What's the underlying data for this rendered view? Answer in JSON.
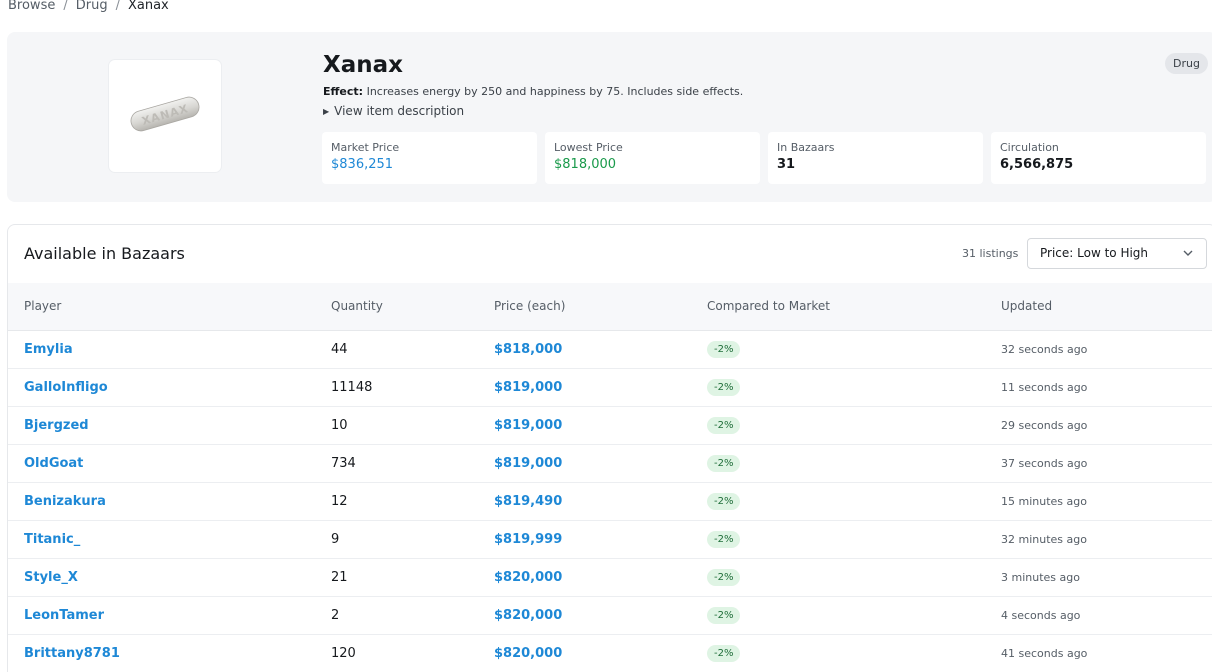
{
  "breadcrumb": [
    "Browse",
    "Drug",
    "Xanax"
  ],
  "item": {
    "title": "Xanax",
    "effect_label": "Effect:",
    "effect_text": "Increases energy by 250 and happiness by 75. Includes side effects.",
    "description_toggle": "View item description",
    "type_badge": "Drug",
    "pill_imprint": "XANAX"
  },
  "stats": {
    "market_price": {
      "label": "Market Price",
      "value": "$836,251"
    },
    "lowest_price": {
      "label": "Lowest Price",
      "value": "$818,000"
    },
    "in_bazaars": {
      "label": "In Bazaars",
      "value": "31"
    },
    "circulation": {
      "label": "Circulation",
      "value": "6,566,875"
    }
  },
  "listings": {
    "title": "Available in Bazaars",
    "count": "31 listings",
    "sort_value": "Price: Low to High",
    "columns": [
      "Player",
      "Quantity",
      "Price (each)",
      "Compared to Market",
      "Updated"
    ],
    "rows": [
      {
        "player": "Emylia",
        "quantity": "44",
        "price": "$818,000",
        "compare": "-2%",
        "updated": "32 seconds ago"
      },
      {
        "player": "GalloInfligo",
        "quantity": "11148",
        "price": "$819,000",
        "compare": "-2%",
        "updated": "11 seconds ago"
      },
      {
        "player": "Bjergzed",
        "quantity": "10",
        "price": "$819,000",
        "compare": "-2%",
        "updated": "29 seconds ago"
      },
      {
        "player": "OldGoat",
        "quantity": "734",
        "price": "$819,000",
        "compare": "-2%",
        "updated": "37 seconds ago"
      },
      {
        "player": "Benizakura",
        "quantity": "12",
        "price": "$819,490",
        "compare": "-2%",
        "updated": "15 minutes ago"
      },
      {
        "player": "Titanic_",
        "quantity": "9",
        "price": "$819,999",
        "compare": "-2%",
        "updated": "32 minutes ago"
      },
      {
        "player": "Style_X",
        "quantity": "21",
        "price": "$820,000",
        "compare": "-2%",
        "updated": "3 minutes ago"
      },
      {
        "player": "LeonTamer",
        "quantity": "2",
        "price": "$820,000",
        "compare": "-2%",
        "updated": "4 seconds ago"
      },
      {
        "player": "Brittany8781",
        "quantity": "120",
        "price": "$820,000",
        "compare": "-2%",
        "updated": "41 seconds ago"
      }
    ]
  },
  "icons": {
    "toggle": "triangle-right-icon",
    "sort": "chevron-down-icon",
    "item": "xanax-pill-icon"
  },
  "colors": {
    "link": "#1e88d6",
    "positive": "#1a9a4b",
    "pill_bg": "#dff4e4"
  }
}
